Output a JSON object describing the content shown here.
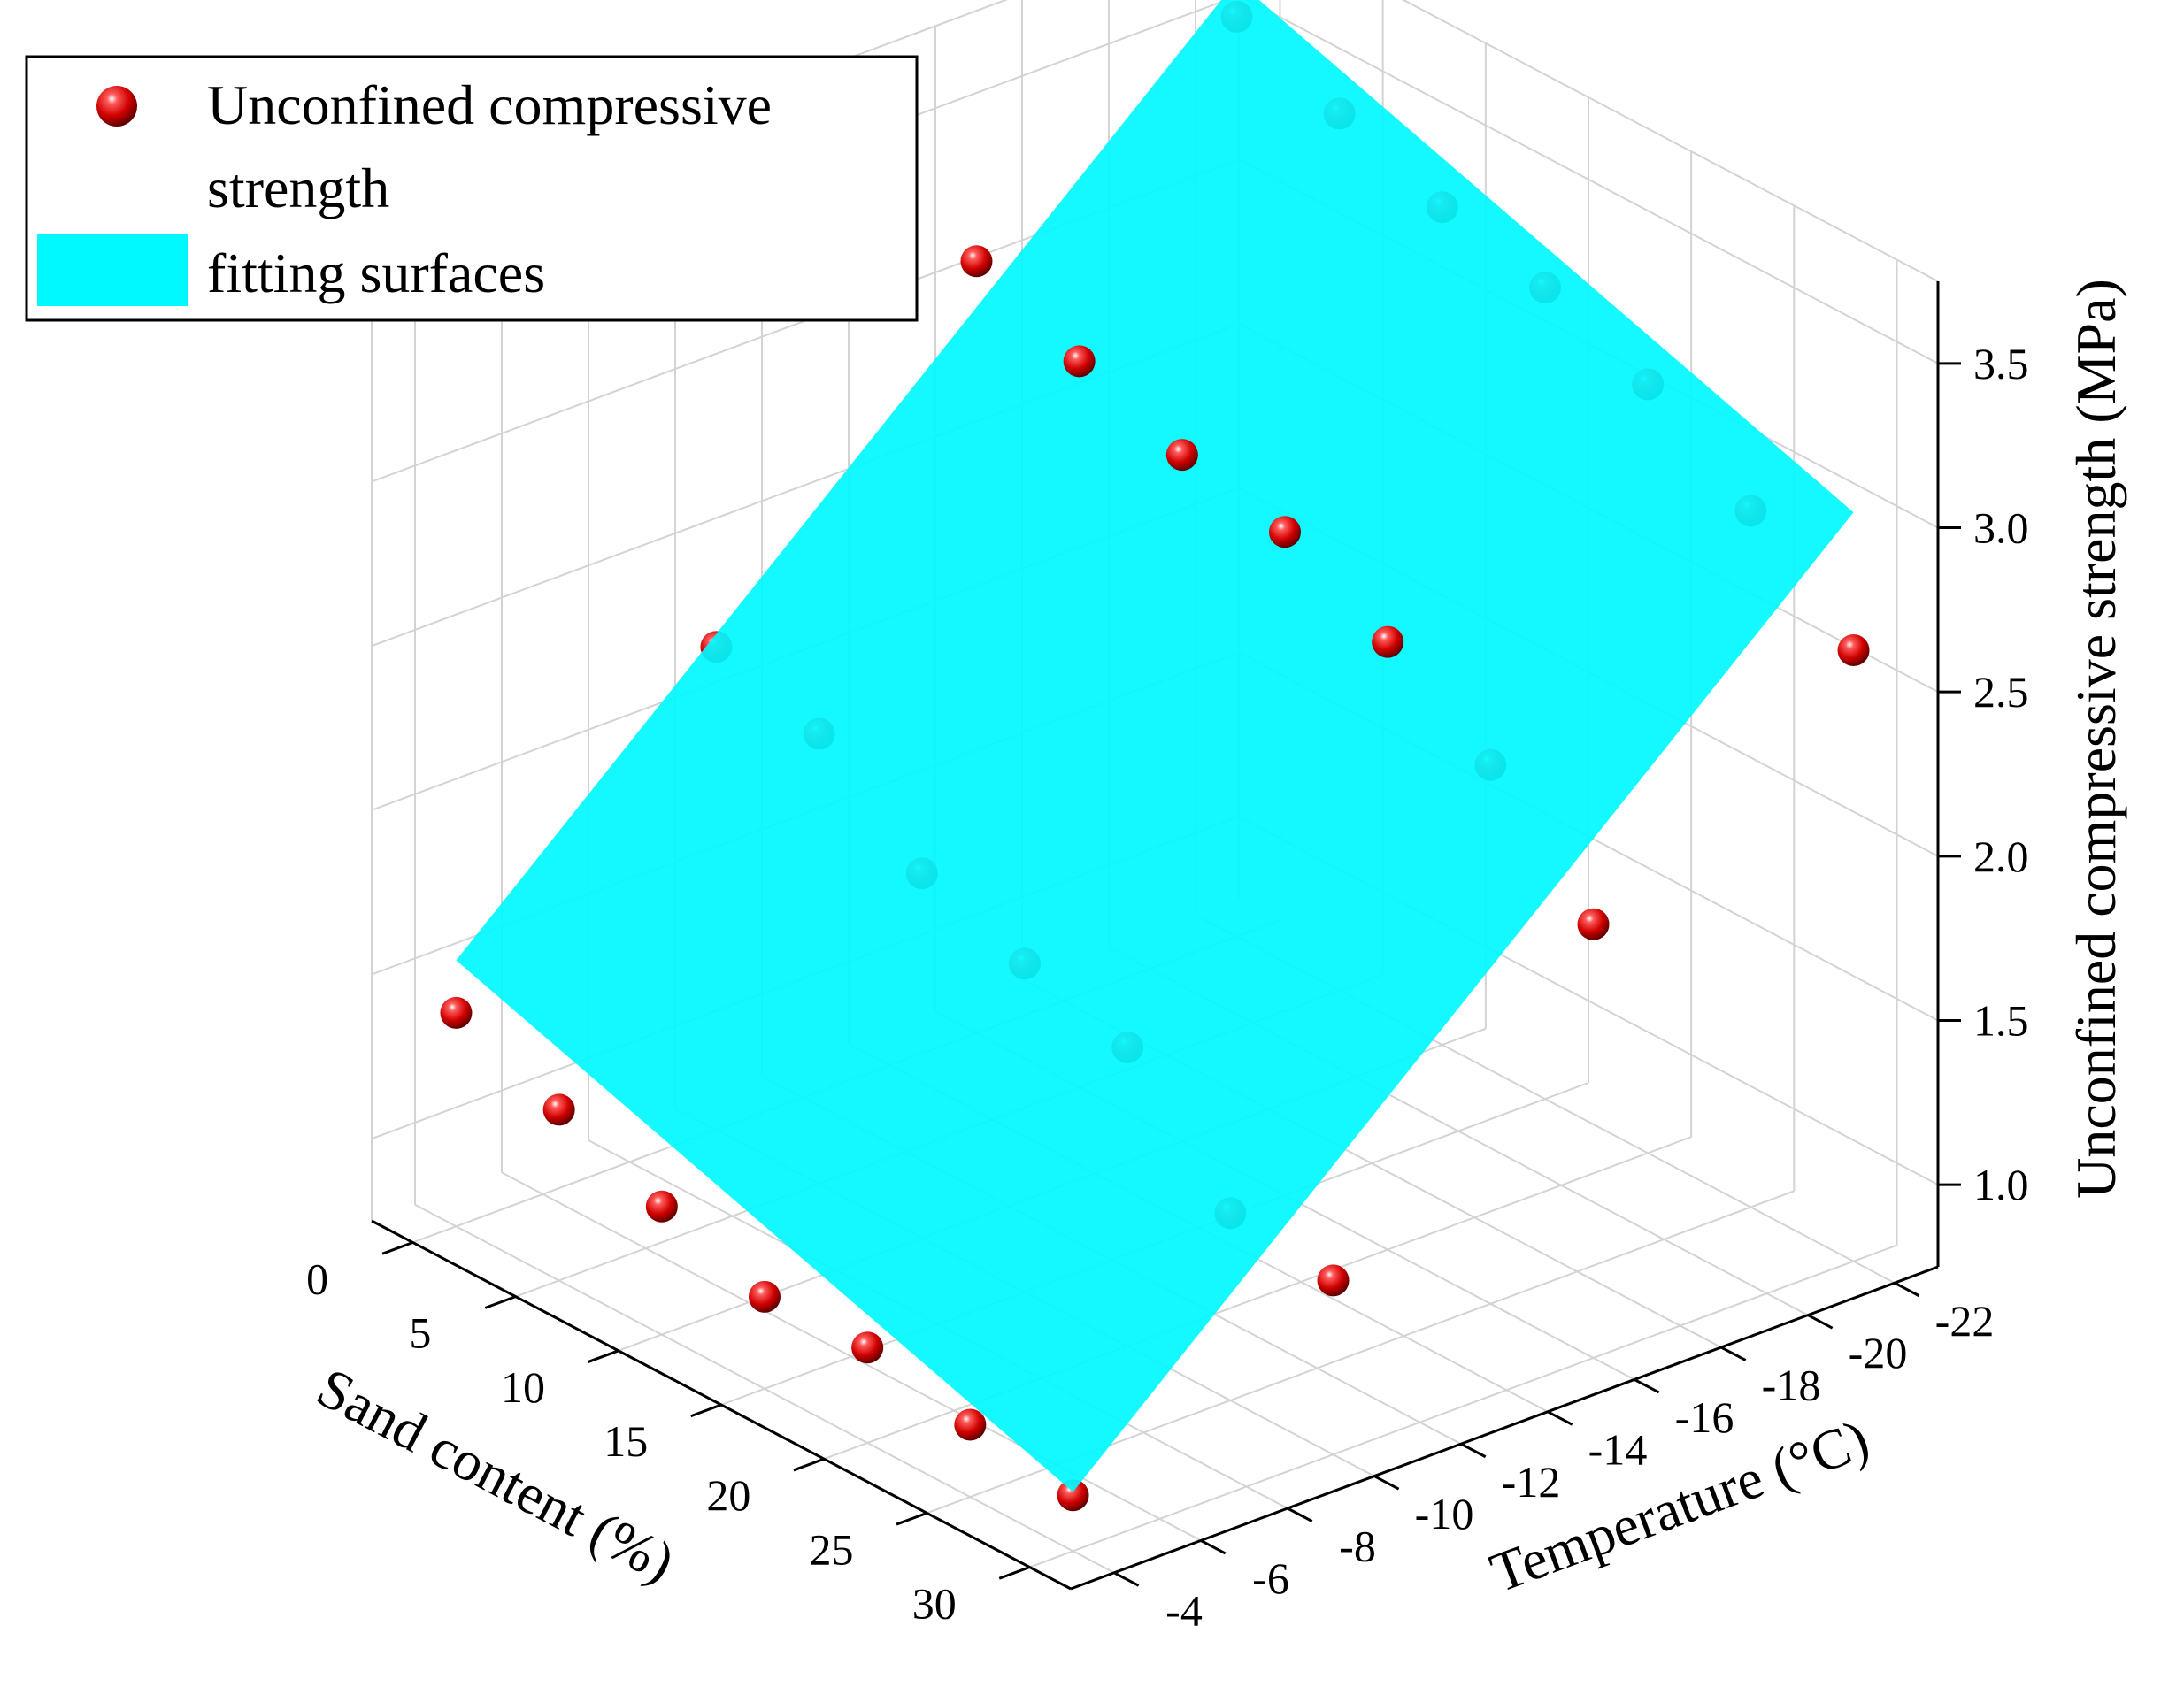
{
  "chart_data": {
    "type": "scatter",
    "subtype": "3d-scatter-with-fitted-plane",
    "title": "",
    "xlabel": "Sand content (%)",
    "ylabel": "Temperature (°C)",
    "zlabel": "Unconfined compressive strength (MPa)",
    "x_ticks": [
      "0",
      "5",
      "10",
      "15",
      "20",
      "25",
      "30"
    ],
    "y_ticks": [
      "-4",
      "-6",
      "-8",
      "-10",
      "-12",
      "-14",
      "-16",
      "-18",
      "-20",
      "-22"
    ],
    "z_ticks": [
      "1.0",
      "1.5",
      "2.0",
      "2.5",
      "3.0",
      "3.5"
    ],
    "xlim": [
      -2,
      32
    ],
    "ylim": [
      -3,
      -23
    ],
    "zlim": [
      0.75,
      3.75
    ],
    "grid": true,
    "legend_position": "top-left",
    "legend": [
      {
        "label_lines": [
          "Unconfined compressive",
          "strength"
        ],
        "color": "#e00000",
        "marker": "sphere"
      },
      {
        "label_lines": [
          "fitting surfaces"
        ],
        "color": "#00f8ff",
        "marker": "surface"
      }
    ],
    "colors": {
      "points": "#e00000",
      "surface": "#00f8ff"
    },
    "surface": {
      "name": "fitting surfaces",
      "corners": [
        {
          "x": 0,
          "y": -4,
          "z": 1.56
        },
        {
          "x": 0,
          "y": -22,
          "z": 3.66
        },
        {
          "x": 30,
          "y": -22,
          "z": 3.03
        },
        {
          "x": 30,
          "y": -4,
          "z": 0.93
        }
      ]
    },
    "series": [
      {
        "name": "Unconfined compressive strength",
        "points": [
          {
            "x": 0,
            "y": -4,
            "z": 1.4
          },
          {
            "x": 5,
            "y": -4,
            "z": 1.27
          },
          {
            "x": 10,
            "y": -4,
            "z": 1.14
          },
          {
            "x": 15,
            "y": -4,
            "z": 1.03
          },
          {
            "x": 20,
            "y": -4,
            "z": 1.04
          },
          {
            "x": 25,
            "y": -4,
            "z": 0.97
          },
          {
            "x": 30,
            "y": -4,
            "z": 0.92
          },
          {
            "x": 0,
            "y": -10,
            "z": 2.22
          },
          {
            "x": 5,
            "y": -10,
            "z": 2.12
          },
          {
            "x": 10,
            "y": -10,
            "z": 1.86
          },
          {
            "x": 15,
            "y": -10,
            "z": 1.75
          },
          {
            "x": 20,
            "y": -10,
            "z": 1.66
          },
          {
            "x": 25,
            "y": -10,
            "z": 1.32
          },
          {
            "x": 30,
            "y": -10,
            "z": 1.28
          },
          {
            "x": 0,
            "y": -16,
            "z": 3.1
          },
          {
            "x": 5,
            "y": -16,
            "z": 2.96
          },
          {
            "x": 10,
            "y": -16,
            "z": 2.84
          },
          {
            "x": 15,
            "y": -16,
            "z": 2.77
          },
          {
            "x": 20,
            "y": -16,
            "z": 2.6
          },
          {
            "x": 25,
            "y": -16,
            "z": 2.39
          },
          {
            "x": 30,
            "y": -16,
            "z": 2.07
          },
          {
            "x": 0,
            "y": -22,
            "z": 3.55
          },
          {
            "x": 5,
            "y": -22,
            "z": 3.42
          },
          {
            "x": 10,
            "y": -22,
            "z": 3.3
          },
          {
            "x": 15,
            "y": -22,
            "z": 3.22
          },
          {
            "x": 20,
            "y": -22,
            "z": 3.09
          },
          {
            "x": 25,
            "y": -22,
            "z": 2.87
          },
          {
            "x": 30,
            "y": -22,
            "z": 2.61
          }
        ]
      }
    ]
  }
}
